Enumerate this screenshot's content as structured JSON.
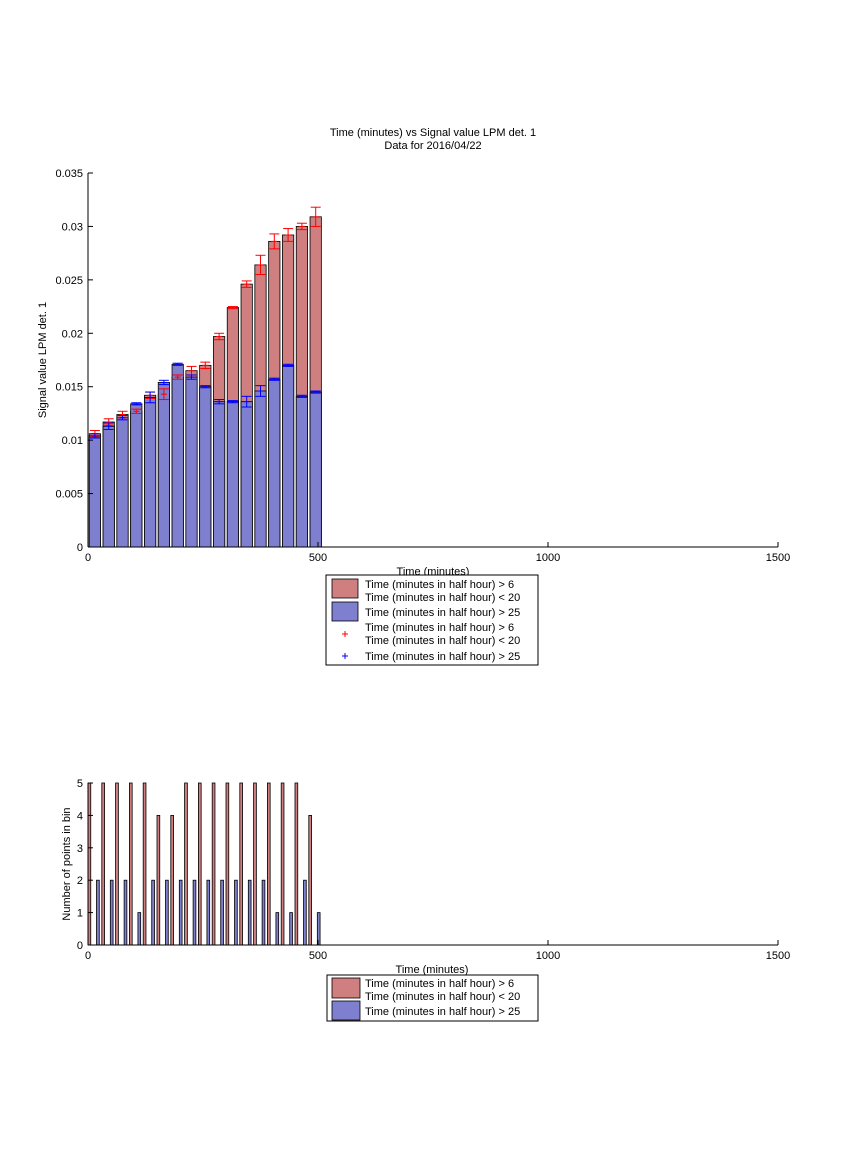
{
  "colors": {
    "red_bar": "#cf7f7f",
    "blue_bar": "#7f7fcf",
    "red_marker": "#ff0000",
    "blue_marker": "#0000ff",
    "axis": "#000000"
  },
  "chart_data": [
    {
      "type": "bar",
      "title": "Time (minutes) vs Signal value LPM det. 1",
      "subtitle": "Data for 2016/04/22",
      "xlabel": "Time (minutes)",
      "ylabel": "Signal value LPM det. 1",
      "xlim": [
        0,
        1500
      ],
      "ylim": [
        0,
        0.035
      ],
      "xticks": [
        0,
        500,
        1000,
        1500
      ],
      "xtick_labels": [
        "0",
        "500",
        "1000",
        "1500"
      ],
      "yticks": [
        0,
        0.005,
        0.01,
        0.015,
        0.02,
        0.025,
        0.03,
        0.035
      ],
      "ytick_labels": [
        "0",
        "0.005",
        "0.01",
        "0.015",
        "0.02",
        "0.025",
        "0.03",
        "0.035"
      ],
      "grid": false,
      "legend_position": "below",
      "x": [
        0,
        30,
        60,
        90,
        120,
        150,
        180,
        210,
        240,
        270,
        300,
        330,
        360,
        390,
        420,
        450,
        480
      ],
      "series": [
        {
          "name": "Time (minutes in half hour) > 6\nTime (minutes in half hour) < 20",
          "color": "#cf7f7f",
          "values": [
            0.0106,
            0.0117,
            0.0124,
            0.0127,
            0.0142,
            0.0143,
            0.0159,
            0.0165,
            0.017,
            0.0197,
            0.0224,
            0.0246,
            0.0264,
            0.0286,
            0.0292,
            0.03,
            0.0309
          ],
          "errors": [
            0.0003,
            0.0003,
            0.0003,
            0.0002,
            0.0003,
            0.0005,
            0.0002,
            0.0004,
            0.0003,
            0.0003,
            0.0001,
            0.0003,
            0.0009,
            0.0007,
            0.0006,
            0.0003,
            0.0009
          ]
        },
        {
          "name": "Time (minutes in half hour) > 25",
          "color": "#7f7fcf",
          "values": [
            0.0104,
            0.0113,
            0.0121,
            0.0134,
            0.014,
            0.0154,
            0.0171,
            0.0159,
            0.015,
            0.0136,
            0.0136,
            0.0136,
            0.0146,
            0.0157,
            0.017,
            0.0141,
            0.0145
          ],
          "errors": [
            0.0002,
            0.0003,
            0.0002,
            0.0001,
            0.0005,
            0.0002,
            0.0001,
            0.0002,
            0.0001,
            0.0002,
            0.0001,
            0.0005,
            0.0005,
            0.0001,
            0.0001,
            0.0001,
            0.0001
          ]
        }
      ],
      "marker_legend": [
        {
          "name": "Time (minutes in half hour) > 6\nTime (minutes in half hour) < 20",
          "marker": "+",
          "color": "#ff0000"
        },
        {
          "name": "Time (minutes in half hour) > 25",
          "marker": "+",
          "color": "#0000ff"
        }
      ]
    },
    {
      "type": "bar",
      "xlabel": "Time (minutes)",
      "ylabel": "Number of points in bin",
      "xlim": [
        0,
        1500
      ],
      "ylim": [
        0,
        5
      ],
      "xticks": [
        0,
        500,
        1000,
        1500
      ],
      "xtick_labels": [
        "0",
        "500",
        "1000",
        "1500"
      ],
      "yticks": [
        0,
        1,
        2,
        3,
        4,
        5
      ],
      "ytick_labels": [
        "0",
        "1",
        "2",
        "3",
        "4",
        "5"
      ],
      "grid": false,
      "legend_position": "below",
      "x": [
        0,
        30,
        60,
        90,
        120,
        150,
        180,
        210,
        240,
        270,
        300,
        330,
        360,
        390,
        420,
        450,
        480
      ],
      "series": [
        {
          "name": "Time (minutes in half hour) > 6\nTime (minutes in half hour) < 20",
          "color": "#cf7f7f",
          "values": [
            5,
            5,
            5,
            5,
            5,
            4,
            4,
            5,
            5,
            5,
            5,
            5,
            5,
            5,
            5,
            5,
            4
          ]
        },
        {
          "name": "Time (minutes in half hour) > 25",
          "color": "#7f7fcf",
          "values": [
            2,
            2,
            2,
            1,
            2,
            2,
            2,
            2,
            2,
            2,
            2,
            2,
            2,
            1,
            1,
            2,
            1
          ]
        }
      ]
    }
  ]
}
